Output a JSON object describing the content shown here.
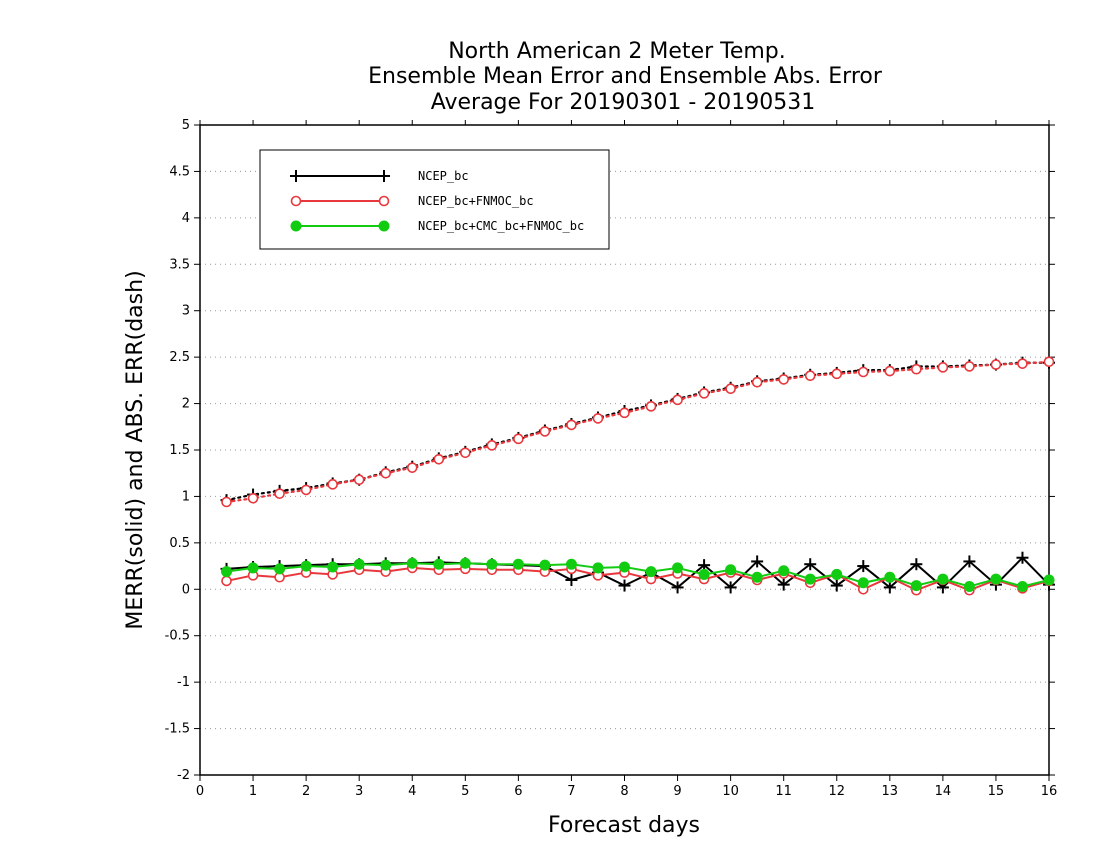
{
  "chart_data": {
    "type": "line",
    "title_lines": [
      "North American 2 Meter Temp.",
      "Ensemble Mean Error and Ensemble Abs. Error",
      "Average For 20190301 - 20190531"
    ],
    "xlabel": "Forecast days",
    "ylabel": "MERR(solid) and ABS. ERR(dash)",
    "xlim": [
      0,
      16
    ],
    "ylim": [
      -2,
      5
    ],
    "xticks": [
      "0",
      "1",
      "2",
      "3",
      "4",
      "5",
      "6",
      "7",
      "8",
      "9",
      "10",
      "11",
      "12",
      "13",
      "14",
      "15",
      "16"
    ],
    "yticks": [
      "5",
      "4.5",
      "4",
      "3.5",
      "3",
      "2.5",
      "2",
      "1.5",
      "1",
      "0.5",
      "0",
      "-0.5",
      "-1",
      "-1.5",
      "-2"
    ],
    "grid": true,
    "legend_position": "top-left",
    "x": [
      0.5,
      1,
      1.5,
      2,
      2.5,
      3,
      3.5,
      4,
      4.5,
      5,
      5.5,
      6,
      6.5,
      7,
      7.5,
      8,
      8.5,
      9,
      9.5,
      10,
      10.5,
      11,
      11.5,
      12,
      12.5,
      13,
      13.5,
      14,
      14.5,
      15,
      15.5,
      16
    ],
    "series": [
      {
        "name": "NCEP_bc",
        "color": "#000000",
        "marker": "plus",
        "merr": [
          0.22,
          0.24,
          0.25,
          0.26,
          0.27,
          0.27,
          0.28,
          0.28,
          0.29,
          0.28,
          0.27,
          0.26,
          0.25,
          0.1,
          0.18,
          0.04,
          0.18,
          0.02,
          0.26,
          0.02,
          0.3,
          0.05,
          0.27,
          0.04,
          0.25,
          0.02,
          0.27,
          0.02,
          0.3,
          0.05,
          0.34,
          0.05
        ],
        "abs_err": [
          0.96,
          1.02,
          1.06,
          1.09,
          1.14,
          1.18,
          1.26,
          1.32,
          1.41,
          1.48,
          1.56,
          1.63,
          1.71,
          1.78,
          1.85,
          1.92,
          1.98,
          2.05,
          2.12,
          2.17,
          2.24,
          2.27,
          2.31,
          2.33,
          2.36,
          2.36,
          2.4,
          2.4,
          2.41,
          2.42,
          2.44,
          2.44
        ]
      },
      {
        "name": "NCEP_bc+FNMOC_bc",
        "color": "#e8383d",
        "marker": "open-circle",
        "merr": [
          0.09,
          0.15,
          0.13,
          0.18,
          0.16,
          0.21,
          0.19,
          0.23,
          0.21,
          0.22,
          0.21,
          0.21,
          0.19,
          0.22,
          0.15,
          0.18,
          0.11,
          0.17,
          0.11,
          0.18,
          0.1,
          0.17,
          0.07,
          0.16,
          0.0,
          0.13,
          -0.01,
          0.1,
          -0.01,
          0.1,
          0.01,
          0.09
        ],
        "abs_err": [
          0.94,
          0.98,
          1.03,
          1.07,
          1.13,
          1.18,
          1.25,
          1.31,
          1.4,
          1.47,
          1.55,
          1.62,
          1.7,
          1.77,
          1.84,
          1.9,
          1.97,
          2.04,
          2.11,
          2.16,
          2.23,
          2.26,
          2.3,
          2.32,
          2.34,
          2.35,
          2.37,
          2.39,
          2.4,
          2.42,
          2.43,
          2.45
        ]
      },
      {
        "name": "NCEP_bc+CMC_bc+FNMOC_bc",
        "color": "#12cc12",
        "marker": "filled-circle",
        "merr": [
          0.19,
          0.23,
          0.22,
          0.25,
          0.24,
          0.27,
          0.26,
          0.28,
          0.27,
          0.28,
          0.27,
          0.27,
          0.26,
          0.27,
          0.23,
          0.24,
          0.19,
          0.23,
          0.16,
          0.21,
          0.13,
          0.2,
          0.11,
          0.16,
          0.07,
          0.13,
          0.04,
          0.11,
          0.03,
          0.11,
          0.03,
          0.1
        ]
      }
    ]
  }
}
